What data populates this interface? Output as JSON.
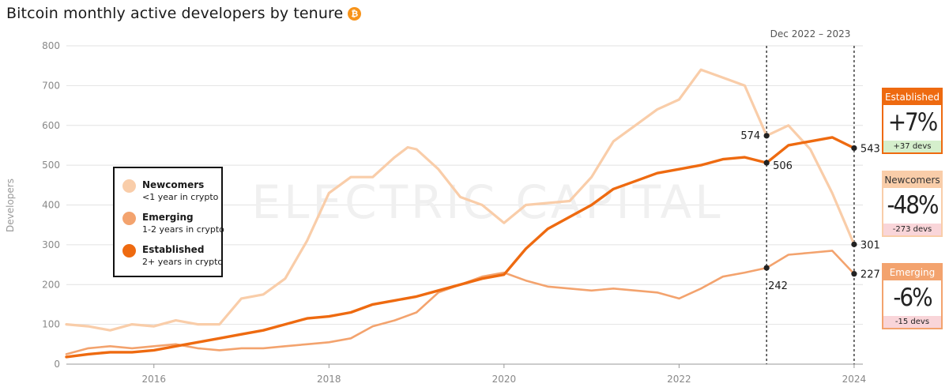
{
  "title": "Bitcoin monthly active developers by tenure",
  "title_icon": "bitcoin-icon",
  "title_icon_glyph": "₿",
  "watermark": "ELECTRIC CAPITAL",
  "period_label": "Dec 2022 – 2023",
  "colors": {
    "newcomers": "#f9cda9",
    "emerging": "#f3a36e",
    "established": "#ee6a10",
    "grid": "#e2e2e2",
    "positive_bg": "#d5efcc",
    "negative_bg": "#f9d5d9"
  },
  "legend": [
    {
      "key": "newcomers",
      "name": "Newcomers",
      "desc": "<1 year in crypto"
    },
    {
      "key": "emerging",
      "name": "Emerging",
      "desc": "1-2 years in crypto"
    },
    {
      "key": "established",
      "name": "Established",
      "desc": "2+ years in crypto"
    }
  ],
  "cards": [
    {
      "key": "established",
      "title": "Established",
      "value": "+7%",
      "delta": "+37 devs",
      "sign": "positive"
    },
    {
      "key": "newcomers",
      "title": "Newcomers",
      "value": "-48%",
      "delta": "-273 devs",
      "sign": "negative"
    },
    {
      "key": "emerging",
      "title": "Emerging",
      "value": "-6%",
      "delta": "-15 devs",
      "sign": "negative"
    }
  ],
  "chart_data": {
    "type": "line",
    "title": "Bitcoin monthly active developers by tenure",
    "xlabel": "",
    "ylabel": "Developers",
    "xlim": [
      2015.0,
      2024.1
    ],
    "ylim": [
      0,
      800
    ],
    "x_ticks": [
      2016,
      2018,
      2020,
      2022,
      2024
    ],
    "y_ticks": [
      0,
      100,
      200,
      300,
      400,
      500,
      600,
      700,
      800
    ],
    "grid": true,
    "reference_lines": [
      2023.0,
      2024.0
    ],
    "series": [
      {
        "name": "Newcomers",
        "key": "newcomers",
        "x": [
          2015.0,
          2015.25,
          2015.5,
          2015.75,
          2016.0,
          2016.25,
          2016.5,
          2016.75,
          2017.0,
          2017.25,
          2017.5,
          2017.75,
          2018.0,
          2018.25,
          2018.5,
          2018.75,
          2018.9,
          2019.0,
          2019.25,
          2019.5,
          2019.75,
          2020.0,
          2020.25,
          2020.5,
          2020.75,
          2021.0,
          2021.25,
          2021.5,
          2021.75,
          2022.0,
          2022.25,
          2022.5,
          2022.75,
          2023.0,
          2023.25,
          2023.5,
          2023.75,
          2024.0
        ],
        "values": [
          100,
          95,
          85,
          100,
          95,
          110,
          100,
          100,
          165,
          175,
          215,
          310,
          430,
          470,
          470,
          520,
          545,
          540,
          490,
          420,
          400,
          355,
          400,
          405,
          410,
          470,
          560,
          600,
          640,
          665,
          740,
          720,
          700,
          574,
          600,
          540,
          430,
          301
        ]
      },
      {
        "name": "Emerging",
        "key": "emerging",
        "x": [
          2015.0,
          2015.25,
          2015.5,
          2015.75,
          2016.0,
          2016.25,
          2016.5,
          2016.75,
          2017.0,
          2017.25,
          2017.5,
          2017.75,
          2018.0,
          2018.25,
          2018.5,
          2018.75,
          2019.0,
          2019.25,
          2019.5,
          2019.75,
          2020.0,
          2020.25,
          2020.5,
          2020.75,
          2021.0,
          2021.25,
          2021.5,
          2021.75,
          2022.0,
          2022.25,
          2022.5,
          2022.75,
          2023.0,
          2023.25,
          2023.5,
          2023.75,
          2024.0
        ],
        "values": [
          25,
          40,
          45,
          40,
          45,
          50,
          40,
          35,
          40,
          40,
          45,
          50,
          55,
          65,
          95,
          110,
          130,
          180,
          200,
          220,
          230,
          210,
          195,
          190,
          185,
          190,
          185,
          180,
          165,
          190,
          220,
          230,
          242,
          275,
          280,
          285,
          227
        ]
      },
      {
        "name": "Established",
        "key": "established",
        "x": [
          2015.0,
          2015.25,
          2015.5,
          2015.75,
          2016.0,
          2016.25,
          2016.5,
          2016.75,
          2017.0,
          2017.25,
          2017.5,
          2017.75,
          2018.0,
          2018.25,
          2018.5,
          2018.75,
          2019.0,
          2019.25,
          2019.5,
          2019.75,
          2020.0,
          2020.25,
          2020.5,
          2020.75,
          2021.0,
          2021.25,
          2021.5,
          2021.75,
          2022.0,
          2022.25,
          2022.5,
          2022.75,
          2023.0,
          2023.25,
          2023.5,
          2023.75,
          2024.0
        ],
        "values": [
          18,
          25,
          30,
          30,
          35,
          45,
          55,
          65,
          75,
          85,
          100,
          115,
          120,
          130,
          150,
          160,
          170,
          185,
          200,
          215,
          225,
          290,
          340,
          370,
          400,
          440,
          460,
          480,
          490,
          500,
          515,
          520,
          506,
          550,
          560,
          570,
          543
        ]
      }
    ],
    "annotations": [
      {
        "series": "newcomers",
        "x": 2023.0,
        "value": 574,
        "label": "574"
      },
      {
        "series": "established",
        "x": 2023.0,
        "value": 506,
        "label": "506"
      },
      {
        "series": "emerging",
        "x": 2023.0,
        "value": 242,
        "label": "242"
      },
      {
        "series": "established",
        "x": 2024.0,
        "value": 543,
        "label": "543"
      },
      {
        "series": "newcomers",
        "x": 2024.0,
        "value": 301,
        "label": "301"
      },
      {
        "series": "emerging",
        "x": 2024.0,
        "value": 227,
        "label": "227"
      }
    ]
  }
}
